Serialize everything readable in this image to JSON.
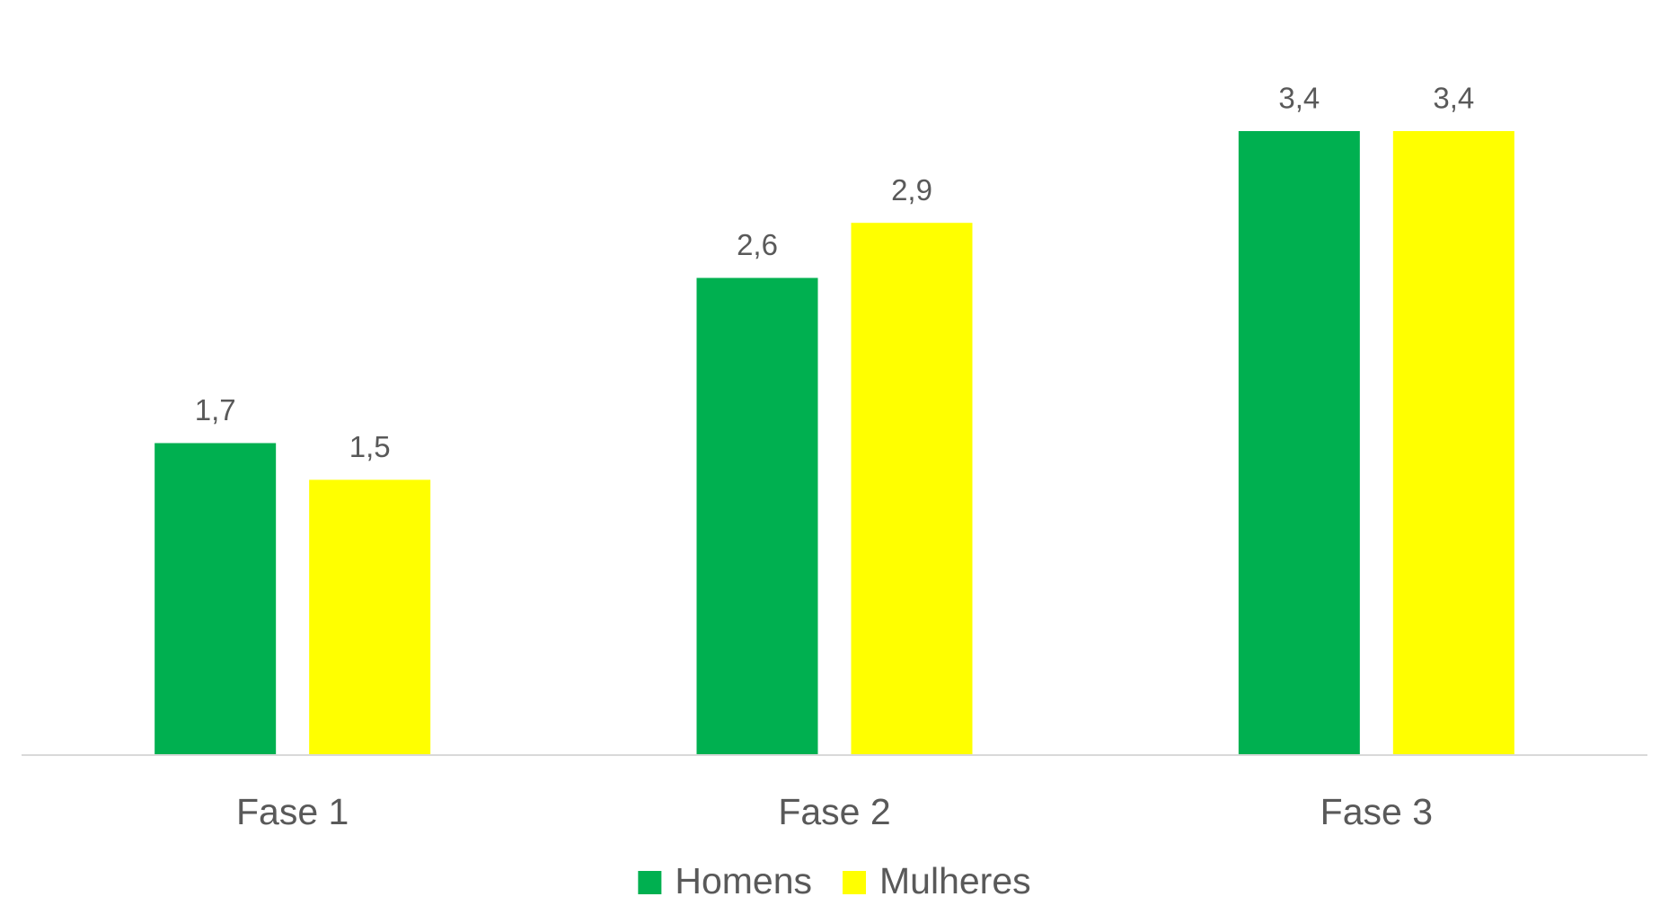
{
  "chart_data": {
    "type": "bar",
    "categories": [
      "Fase 1",
      "Fase 2",
      "Fase 3"
    ],
    "series": [
      {
        "name": "Homens",
        "color": "#00b050",
        "values": [
          1.7,
          2.6,
          3.4
        ],
        "value_labels": [
          "1,7",
          "2,6",
          "3,4"
        ]
      },
      {
        "name": "Mulheres",
        "color": "#ffff00",
        "values": [
          1.5,
          2.9,
          3.4
        ],
        "value_labels": [
          "1,5",
          "2,9",
          "3,4"
        ]
      }
    ],
    "legend": "bottom"
  }
}
